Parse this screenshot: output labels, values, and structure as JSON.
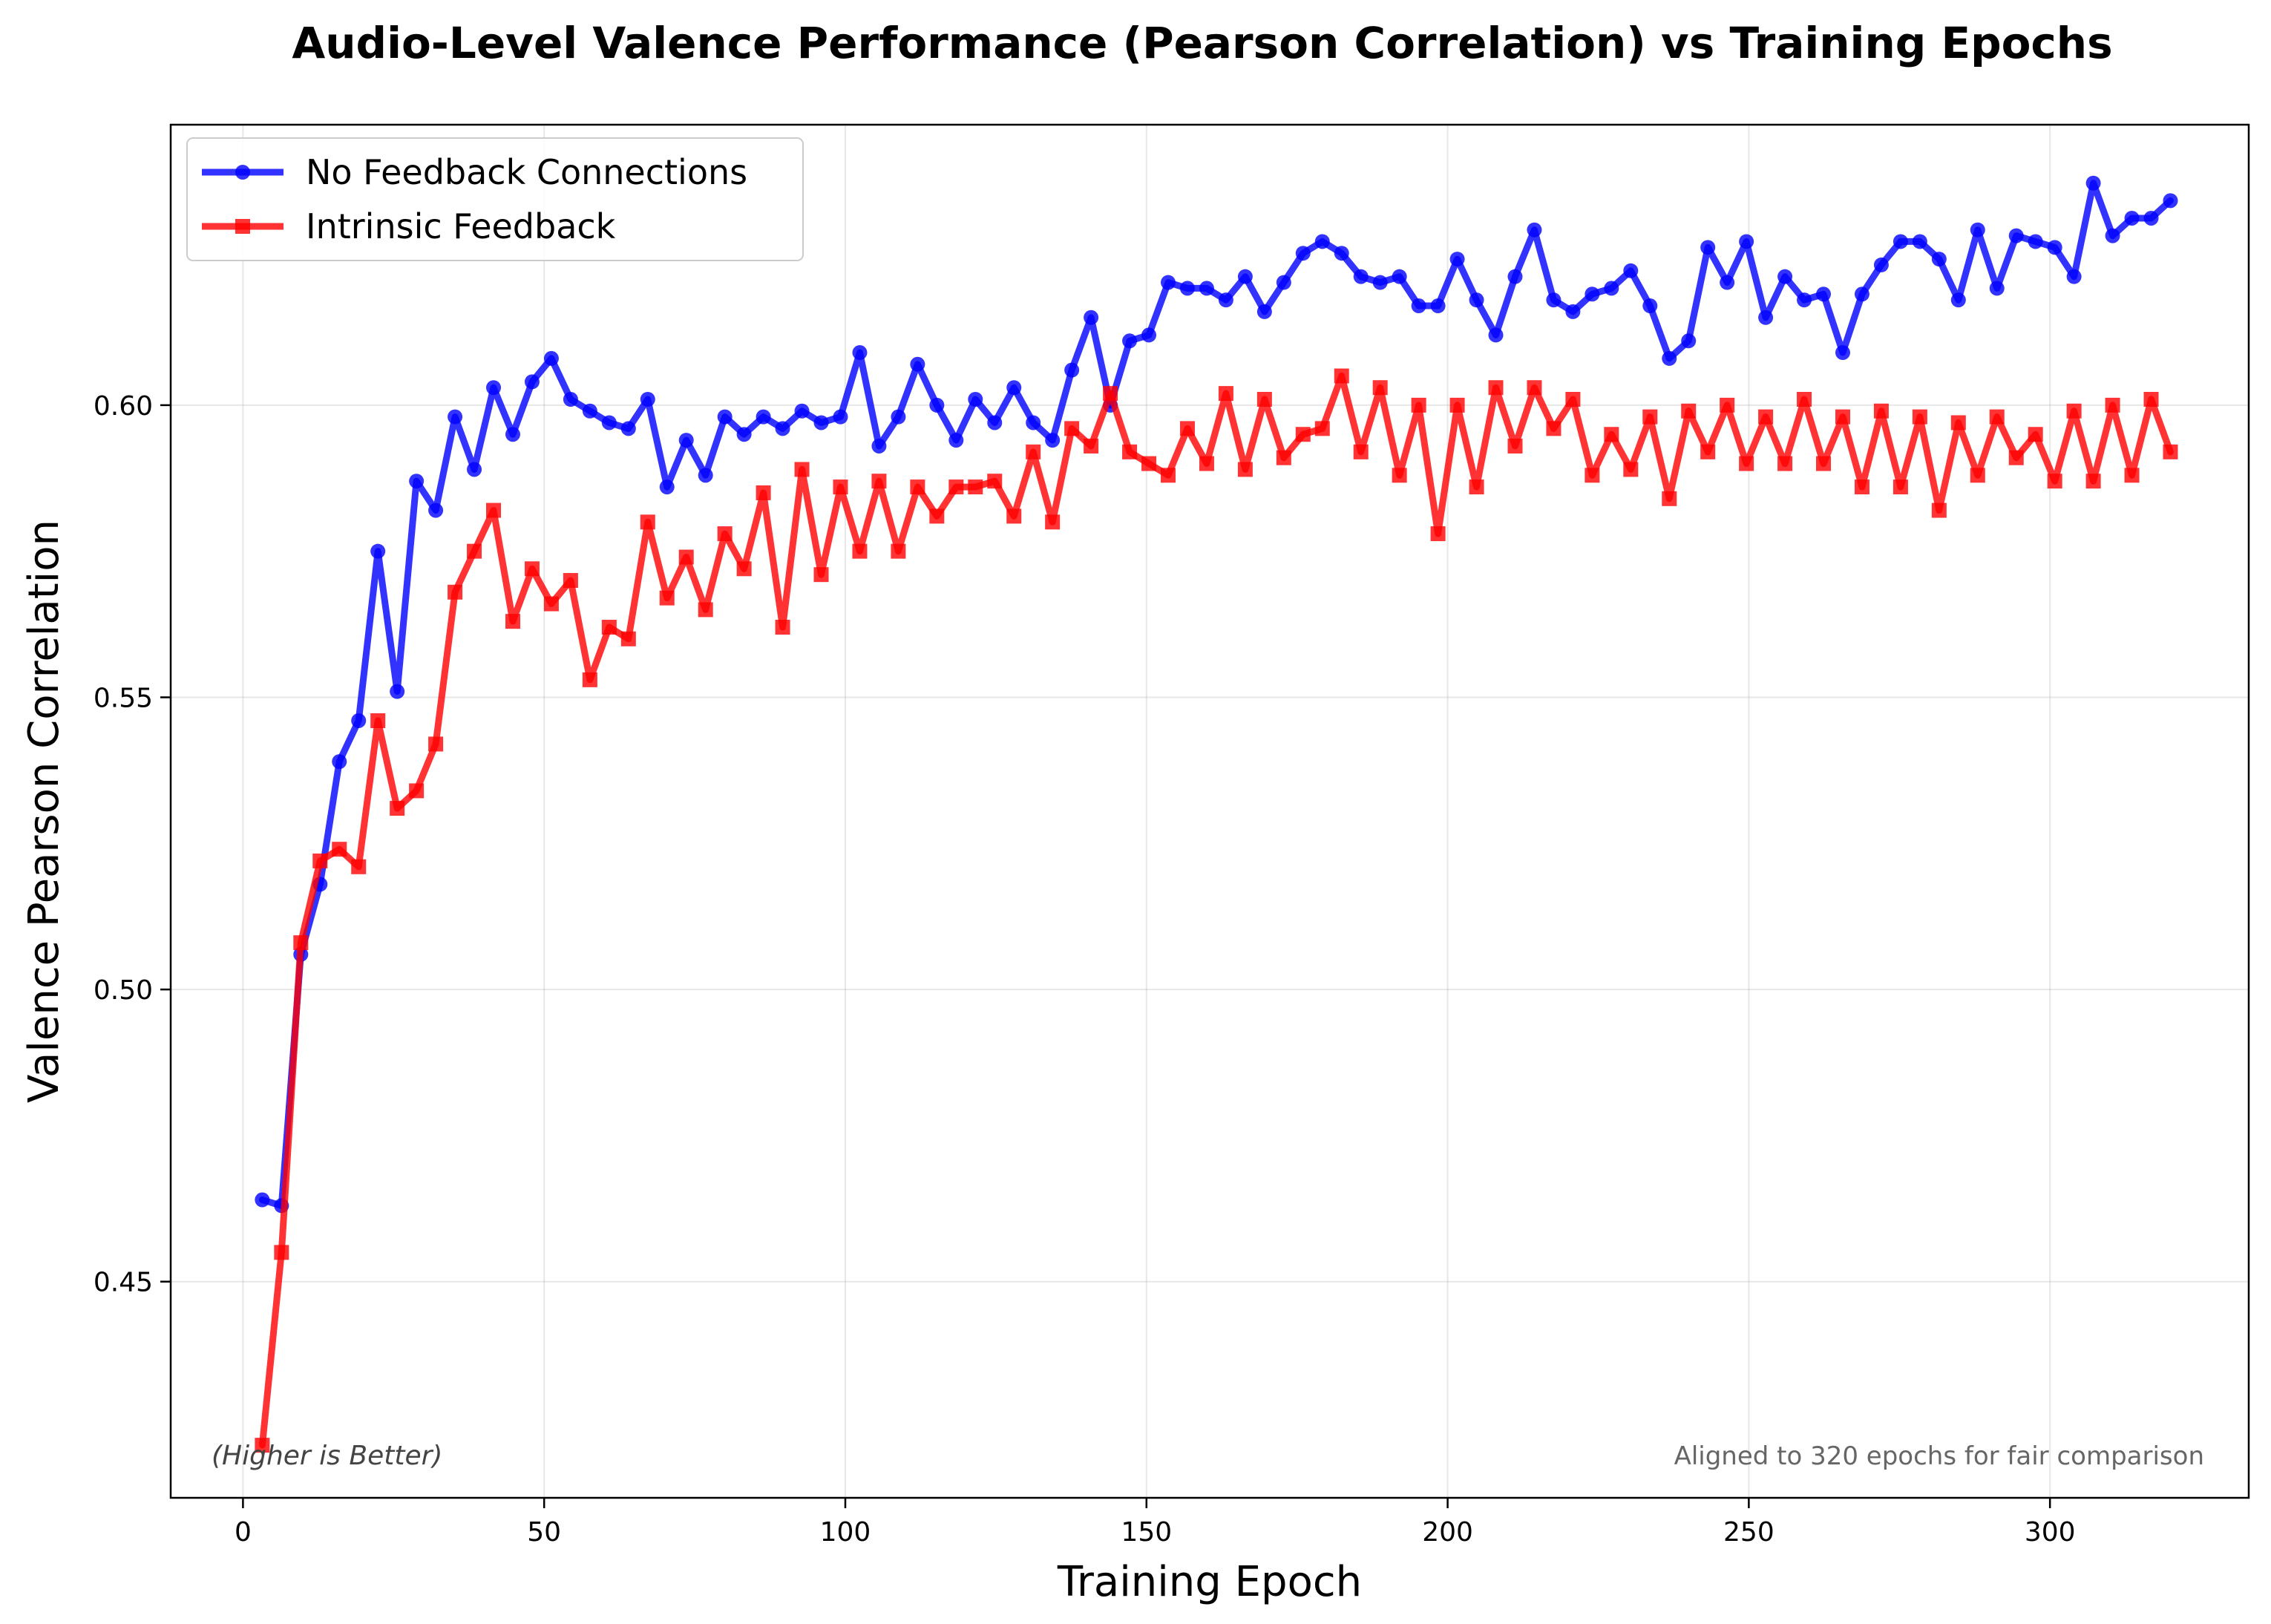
{
  "chart_data": {
    "type": "line",
    "title": "Audio-Level Valence Performance (Pearson Correlation) vs Training Epochs",
    "xlabel": "Training Epoch",
    "ylabel": "Valence Pearson Correlation",
    "xlim": [
      -12,
      333
    ],
    "ylim": [
      0.413,
      0.648
    ],
    "xticks": [
      0,
      50,
      100,
      150,
      200,
      250,
      300
    ],
    "yticks": [
      0.45,
      0.5,
      0.55,
      0.6
    ],
    "grid": true,
    "legend_position": "top-left",
    "annotations": {
      "left": "(Higher is Better)",
      "right": "Aligned to 320 epochs for fair comparison"
    },
    "x": [
      3.2,
      6.4,
      9.6,
      12.8,
      16,
      19.2,
      22.4,
      25.6,
      28.8,
      32,
      35.2,
      38.4,
      41.6,
      44.8,
      48,
      51.2,
      54.4,
      57.6,
      60.8,
      64,
      67.2,
      70.4,
      73.6,
      76.8,
      80,
      83.2,
      86.4,
      89.6,
      92.8,
      96,
      99.2,
      102.4,
      105.6,
      108.8,
      112,
      115.2,
      118.4,
      121.6,
      124.8,
      128,
      131.2,
      134.4,
      137.6,
      140.8,
      144,
      147.2,
      150.4,
      153.6,
      156.8,
      160,
      163.2,
      166.4,
      169.6,
      172.8,
      176,
      179.2,
      182.4,
      185.6,
      188.8,
      192,
      195.2,
      198.4,
      201.6,
      204.8,
      208,
      211.2,
      214.4,
      217.6,
      220.8,
      224,
      227.2,
      230.4,
      233.6,
      236.8,
      240,
      243.2,
      246.4,
      249.6,
      252.8,
      256,
      259.2,
      262.4,
      265.6,
      268.8,
      272,
      275.2,
      278.4,
      281.6,
      284.8,
      288,
      291.2,
      294.4,
      297.6,
      300.8,
      304,
      307.2,
      310.4,
      313.6,
      316.8,
      320
    ],
    "series": [
      {
        "name": "No Feedback Connections",
        "color": "#0000ff",
        "marker": "circle",
        "values": [
          0.464,
          0.463,
          0.506,
          0.518,
          0.539,
          0.546,
          0.575,
          0.551,
          0.587,
          0.582,
          0.598,
          0.589,
          0.603,
          0.595,
          0.604,
          0.608,
          0.601,
          0.599,
          0.597,
          0.596,
          0.601,
          0.586,
          0.594,
          0.588,
          0.598,
          0.595,
          0.598,
          0.596,
          0.599,
          0.597,
          0.598,
          0.609,
          0.593,
          0.598,
          0.607,
          0.6,
          0.594,
          0.601,
          0.597,
          0.603,
          0.597,
          0.594,
          0.606,
          0.615,
          0.6,
          0.611,
          0.612,
          0.621,
          0.62,
          0.62,
          0.618,
          0.622,
          0.616,
          0.621,
          0.626,
          0.628,
          0.626,
          0.622,
          0.621,
          0.622,
          0.617,
          0.617,
          0.625,
          0.618,
          0.612,
          0.622,
          0.63,
          0.618,
          0.616,
          0.619,
          0.62,
          0.623,
          0.617,
          0.608,
          0.611,
          0.627,
          0.621,
          0.628,
          0.615,
          0.622,
          0.618,
          0.619,
          0.609,
          0.619,
          0.624,
          0.628,
          0.628,
          0.625,
          0.618,
          0.63,
          0.62,
          0.629,
          0.628,
          0.627,
          0.622,
          0.638,
          0.629,
          0.632,
          0.632,
          0.635
        ]
      },
      {
        "name": "Intrinsic Feedback",
        "color": "#ff0000",
        "marker": "square",
        "values": [
          0.422,
          0.455,
          0.508,
          0.522,
          0.524,
          0.521,
          0.546,
          0.531,
          0.534,
          0.542,
          0.568,
          0.575,
          0.582,
          0.563,
          0.572,
          0.566,
          0.57,
          0.553,
          0.562,
          0.56,
          0.58,
          0.567,
          0.574,
          0.565,
          0.578,
          0.572,
          0.585,
          0.562,
          0.589,
          0.571,
          0.586,
          0.575,
          0.587,
          0.575,
          0.586,
          0.581,
          0.586,
          0.586,
          0.587,
          0.581,
          0.592,
          0.58,
          0.596,
          0.593,
          0.602,
          0.592,
          0.59,
          0.588,
          0.596,
          0.59,
          0.602,
          0.589,
          0.601,
          0.591,
          0.595,
          0.596,
          0.605,
          0.592,
          0.603,
          0.588,
          0.6,
          0.578,
          0.6,
          0.586,
          0.603,
          0.593,
          0.603,
          0.596,
          0.601,
          0.588,
          0.595,
          0.589,
          0.598,
          0.584,
          0.599,
          0.592,
          0.6,
          0.59,
          0.598,
          0.59,
          0.601,
          0.59,
          0.598,
          0.586,
          0.599,
          0.586,
          0.598,
          0.582,
          0.597,
          0.588,
          0.598,
          0.591,
          0.595,
          0.587,
          0.599,
          0.587,
          0.6,
          0.588,
          0.601,
          0.592
        ]
      }
    ]
  }
}
